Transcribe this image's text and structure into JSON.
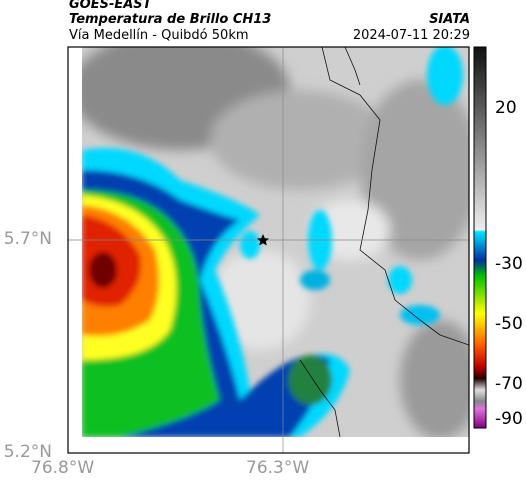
{
  "header": {
    "title": "GOES-EAST",
    "subtitle": "Temperatura de Brillo CH13",
    "location": "Vía Medellín - Quibdó 50km",
    "source": "SIATA",
    "datetime": "2024-07-11 20:29"
  },
  "axes": {
    "lat_ticks": [
      "5.7°N",
      "5.2°N"
    ],
    "lon_ticks": [
      "76.8°W",
      "76.3°W"
    ]
  },
  "colorbar": {
    "ticks": [
      "20",
      "-30",
      "-50",
      "-70",
      "-90"
    ]
  }
}
